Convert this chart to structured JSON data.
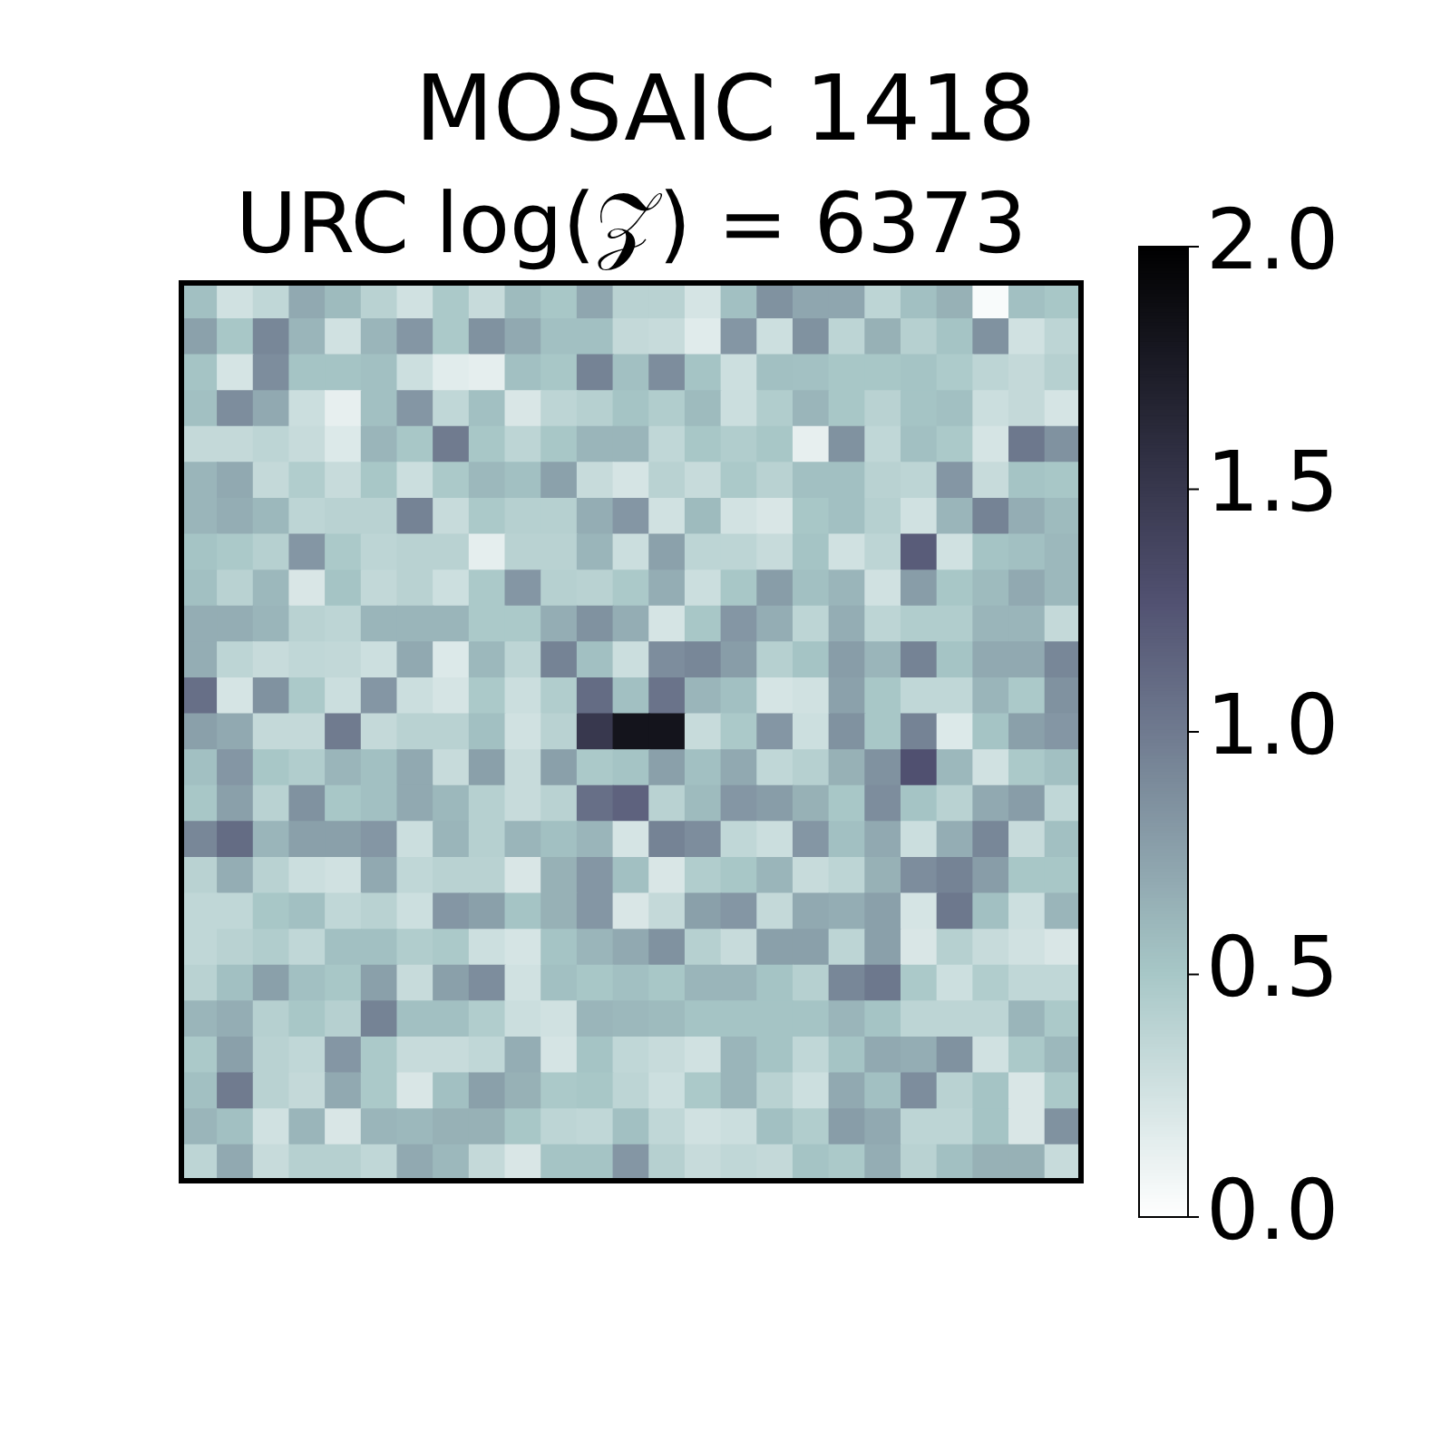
{
  "chart_data": {
    "type": "heatmap",
    "title": "MOSAIC 1418",
    "subtitle": "URC log(𝒵) = 6373",
    "categories": [
      null,
      null,
      null,
      null,
      null,
      null,
      null,
      null,
      null,
      null,
      null,
      null,
      null,
      null,
      null,
      null,
      null,
      null,
      null,
      null,
      null,
      null,
      null,
      null,
      null
    ],
    "y_categories": [
      null,
      null,
      null,
      null,
      null,
      null,
      null,
      null,
      null,
      null,
      null,
      null,
      null,
      null,
      null,
      null,
      null,
      null,
      null,
      null,
      null,
      null,
      null,
      null,
      null
    ],
    "cells": [
      [
        0.55,
        0.27,
        0.36,
        0.7,
        0.58,
        0.4,
        0.27,
        0.48,
        0.32,
        0.58,
        0.5,
        0.72,
        0.4,
        0.4,
        0.24,
        0.55,
        0.85,
        0.72,
        0.72,
        0.38,
        0.55,
        0.65,
        0.04,
        0.55,
        0.5
      ],
      [
        0.75,
        0.5,
        0.92,
        0.62,
        0.27,
        0.62,
        0.82,
        0.48,
        0.85,
        0.7,
        0.55,
        0.55,
        0.34,
        0.32,
        0.18,
        0.82,
        0.29,
        0.85,
        0.38,
        0.65,
        0.42,
        0.52,
        0.85,
        0.27,
        0.38
      ],
      [
        0.52,
        0.24,
        0.88,
        0.52,
        0.52,
        0.55,
        0.29,
        0.17,
        0.15,
        0.55,
        0.5,
        0.95,
        0.55,
        0.88,
        0.52,
        0.29,
        0.55,
        0.54,
        0.5,
        0.5,
        0.52,
        0.47,
        0.38,
        0.34,
        0.42
      ],
      [
        0.55,
        0.88,
        0.7,
        0.3,
        0.14,
        0.55,
        0.82,
        0.36,
        0.55,
        0.22,
        0.38,
        0.42,
        0.52,
        0.45,
        0.58,
        0.3,
        0.45,
        0.62,
        0.5,
        0.4,
        0.52,
        0.55,
        0.3,
        0.34,
        0.24
      ],
      [
        0.34,
        0.34,
        0.38,
        0.32,
        0.2,
        0.62,
        0.5,
        1.0,
        0.5,
        0.38,
        0.5,
        0.62,
        0.62,
        0.36,
        0.5,
        0.45,
        0.5,
        0.14,
        0.85,
        0.36,
        0.55,
        0.48,
        0.24,
        1.02,
        0.85
      ],
      [
        0.62,
        0.7,
        0.34,
        0.45,
        0.32,
        0.5,
        0.3,
        0.48,
        0.6,
        0.55,
        0.75,
        0.32,
        0.24,
        0.4,
        0.32,
        0.48,
        0.4,
        0.55,
        0.55,
        0.4,
        0.38,
        0.82,
        0.32,
        0.52,
        0.5
      ],
      [
        0.62,
        0.67,
        0.6,
        0.38,
        0.4,
        0.4,
        0.95,
        0.32,
        0.48,
        0.42,
        0.42,
        0.67,
        0.82,
        0.27,
        0.58,
        0.26,
        0.22,
        0.5,
        0.55,
        0.42,
        0.27,
        0.62,
        0.95,
        0.67,
        0.58
      ],
      [
        0.52,
        0.48,
        0.42,
        0.82,
        0.48,
        0.38,
        0.4,
        0.4,
        0.15,
        0.4,
        0.4,
        0.62,
        0.3,
        0.75,
        0.38,
        0.38,
        0.32,
        0.52,
        0.27,
        0.38,
        1.2,
        0.27,
        0.52,
        0.55,
        0.6
      ],
      [
        0.55,
        0.4,
        0.6,
        0.22,
        0.52,
        0.35,
        0.4,
        0.29,
        0.48,
        0.82,
        0.42,
        0.4,
        0.48,
        0.67,
        0.3,
        0.5,
        0.78,
        0.55,
        0.62,
        0.27,
        0.78,
        0.5,
        0.58,
        0.7,
        0.6
      ],
      [
        0.67,
        0.67,
        0.62,
        0.4,
        0.38,
        0.62,
        0.62,
        0.62,
        0.48,
        0.48,
        0.67,
        0.85,
        0.67,
        0.24,
        0.5,
        0.82,
        0.67,
        0.38,
        0.67,
        0.38,
        0.45,
        0.45,
        0.62,
        0.62,
        0.34
      ],
      [
        0.67,
        0.38,
        0.32,
        0.36,
        0.35,
        0.29,
        0.7,
        0.2,
        0.6,
        0.38,
        0.95,
        0.55,
        0.3,
        0.88,
        0.92,
        0.78,
        0.42,
        0.52,
        0.78,
        0.62,
        0.95,
        0.52,
        0.7,
        0.7,
        0.92
      ],
      [
        1.08,
        0.24,
        0.85,
        0.48,
        0.3,
        0.82,
        0.3,
        0.24,
        0.48,
        0.3,
        0.45,
        1.1,
        0.55,
        1.05,
        0.62,
        0.55,
        0.24,
        0.27,
        0.75,
        0.5,
        0.36,
        0.36,
        0.62,
        0.48,
        0.85
      ],
      [
        0.76,
        0.7,
        0.34,
        0.34,
        1.0,
        0.34,
        0.4,
        0.4,
        0.55,
        0.27,
        0.4,
        1.5,
        1.82,
        1.82,
        0.32,
        0.48,
        0.82,
        0.29,
        0.85,
        0.5,
        0.95,
        0.2,
        0.52,
        0.76,
        0.82
      ],
      [
        0.55,
        0.82,
        0.5,
        0.45,
        0.62,
        0.55,
        0.7,
        0.32,
        0.76,
        0.32,
        0.76,
        0.48,
        0.52,
        0.76,
        0.55,
        0.7,
        0.36,
        0.42,
        0.65,
        0.85,
        1.28,
        0.6,
        0.27,
        0.48,
        0.55
      ],
      [
        0.5,
        0.76,
        0.4,
        0.85,
        0.5,
        0.55,
        0.7,
        0.6,
        0.42,
        0.32,
        0.4,
        1.08,
        1.16,
        0.4,
        0.58,
        0.82,
        0.78,
        0.65,
        0.5,
        0.88,
        0.52,
        0.4,
        0.7,
        0.78,
        0.36
      ],
      [
        0.92,
        1.1,
        0.62,
        0.76,
        0.76,
        0.82,
        0.3,
        0.62,
        0.42,
        0.62,
        0.55,
        0.62,
        0.24,
        0.95,
        0.88,
        0.36,
        0.3,
        0.82,
        0.55,
        0.7,
        0.3,
        0.67,
        0.92,
        0.32,
        0.55
      ],
      [
        0.4,
        0.67,
        0.4,
        0.3,
        0.27,
        0.7,
        0.36,
        0.4,
        0.4,
        0.22,
        0.65,
        0.82,
        0.55,
        0.22,
        0.45,
        0.5,
        0.62,
        0.32,
        0.38,
        0.65,
        0.88,
        0.95,
        0.78,
        0.5,
        0.5
      ],
      [
        0.36,
        0.36,
        0.5,
        0.55,
        0.36,
        0.4,
        0.29,
        0.82,
        0.76,
        0.52,
        0.65,
        0.82,
        0.22,
        0.34,
        0.76,
        0.82,
        0.34,
        0.7,
        0.67,
        0.76,
        0.24,
        1.02,
        0.55,
        0.29,
        0.62
      ],
      [
        0.36,
        0.4,
        0.45,
        0.36,
        0.55,
        0.55,
        0.45,
        0.48,
        0.29,
        0.24,
        0.52,
        0.62,
        0.7,
        0.85,
        0.42,
        0.32,
        0.76,
        0.76,
        0.38,
        0.76,
        0.22,
        0.42,
        0.32,
        0.27,
        0.22
      ],
      [
        0.4,
        0.55,
        0.76,
        0.55,
        0.5,
        0.76,
        0.32,
        0.76,
        0.88,
        0.27,
        0.55,
        0.5,
        0.55,
        0.5,
        0.62,
        0.62,
        0.52,
        0.42,
        0.92,
        1.02,
        0.48,
        0.29,
        0.45,
        0.36,
        0.36
      ],
      [
        0.62,
        0.67,
        0.42,
        0.5,
        0.42,
        0.95,
        0.55,
        0.55,
        0.45,
        0.3,
        0.27,
        0.62,
        0.6,
        0.58,
        0.52,
        0.52,
        0.52,
        0.52,
        0.62,
        0.52,
        0.38,
        0.38,
        0.38,
        0.62,
        0.48
      ],
      [
        0.48,
        0.76,
        0.4,
        0.36,
        0.82,
        0.48,
        0.32,
        0.32,
        0.36,
        0.67,
        0.24,
        0.52,
        0.36,
        0.32,
        0.27,
        0.62,
        0.52,
        0.36,
        0.52,
        0.7,
        0.67,
        0.85,
        0.27,
        0.48,
        0.6
      ],
      [
        0.55,
        1.0,
        0.4,
        0.34,
        0.7,
        0.48,
        0.22,
        0.55,
        0.76,
        0.65,
        0.48,
        0.5,
        0.38,
        0.29,
        0.48,
        0.62,
        0.4,
        0.29,
        0.7,
        0.55,
        0.88,
        0.4,
        0.52,
        0.22,
        0.48
      ],
      [
        0.62,
        0.55,
        0.27,
        0.62,
        0.22,
        0.62,
        0.6,
        0.65,
        0.65,
        0.5,
        0.38,
        0.36,
        0.55,
        0.36,
        0.27,
        0.3,
        0.55,
        0.45,
        0.78,
        0.7,
        0.38,
        0.38,
        0.52,
        0.22,
        0.85
      ],
      [
        0.38,
        0.7,
        0.32,
        0.42,
        0.42,
        0.36,
        0.7,
        0.6,
        0.34,
        0.22,
        0.52,
        0.52,
        0.82,
        0.42,
        0.32,
        0.36,
        0.34,
        0.52,
        0.48,
        0.67,
        0.4,
        0.55,
        0.65,
        0.65,
        0.32
      ]
    ],
    "clim": [
      0,
      2
    ],
    "cticks": [
      {
        "value": 0,
        "label": "0.0"
      },
      {
        "value": 0.5,
        "label": "0.5"
      },
      {
        "value": 1,
        "label": "1.0"
      },
      {
        "value": 1.5,
        "label": "1.5"
      },
      {
        "value": 2,
        "label": "2.0"
      }
    ]
  }
}
